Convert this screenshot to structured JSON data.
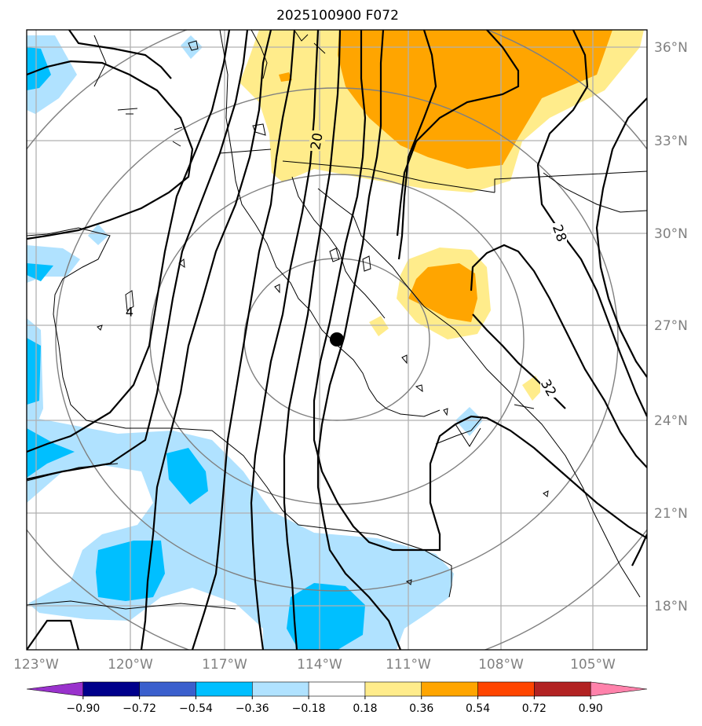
{
  "title": "2025100900 F072",
  "map": {
    "lon_labels": [
      "123°W",
      "120°W",
      "117°W",
      "114°W",
      "111°W",
      "108°W",
      "105°W"
    ],
    "lat_labels": [
      "36°N",
      "33°N",
      "30°N",
      "27°N",
      "24°N",
      "21°N",
      "18°N"
    ],
    "contour_labels": [
      "20",
      "28",
      "32",
      "4"
    ],
    "grid": true,
    "range_rings": true,
    "center_marker": "black-dot"
  },
  "colorbar": {
    "ticks": [
      "−0.90",
      "−0.72",
      "−0.54",
      "−0.36",
      "−0.18",
      "0.18",
      "0.36",
      "0.54",
      "0.72",
      "0.90"
    ],
    "colors": [
      "#9932cc",
      "#00008b",
      "#3a5fcd",
      "#00bfff",
      "#b0e2ff",
      "#ffffff",
      "#ffec8b",
      "#ffa500",
      "#ff4500",
      "#b22222",
      "#ff82ab"
    ]
  }
}
